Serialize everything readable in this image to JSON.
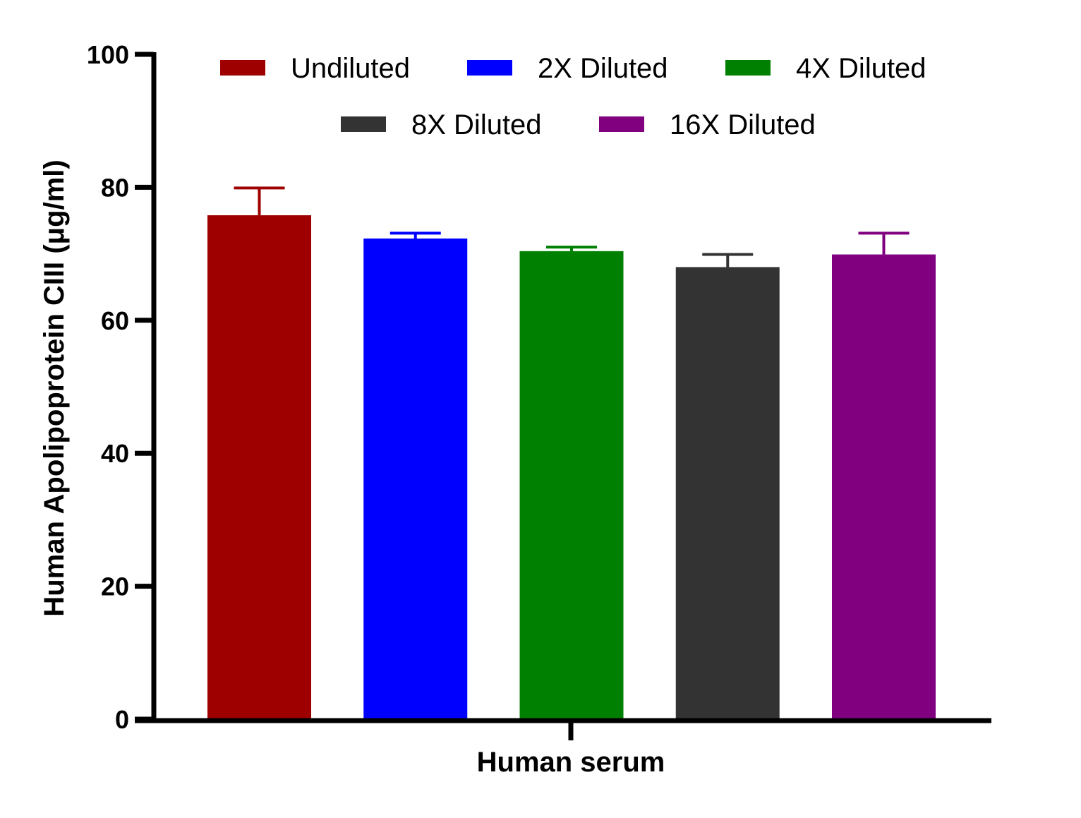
{
  "chart_data": {
    "type": "bar",
    "title": "",
    "xlabel": "Human serum",
    "ylabel": "Human Apolipoprotein CIII (μg/ml)",
    "ylim": [
      0,
      100
    ],
    "yticks": [
      0,
      20,
      40,
      60,
      80,
      100
    ],
    "categories": [
      "Human serum"
    ],
    "grid": false,
    "legend_position": "top",
    "series": [
      {
        "name": "Undiluted",
        "values": [
          75.8
        ],
        "error": [
          4.1
        ],
        "color": "#9e0000"
      },
      {
        "name": "2X Diluted",
        "values": [
          72.3
        ],
        "error": [
          0.8
        ],
        "color": "#0000ff"
      },
      {
        "name": "4X Diluted",
        "values": [
          70.4
        ],
        "error": [
          0.6
        ],
        "color": "#008000"
      },
      {
        "name": "8X Diluted",
        "values": [
          68.0
        ],
        "error": [
          1.9
        ],
        "color": "#333333"
      },
      {
        "name": "16X Diluted",
        "values": [
          69.9
        ],
        "error": [
          3.2
        ],
        "color": "#800080"
      }
    ]
  }
}
